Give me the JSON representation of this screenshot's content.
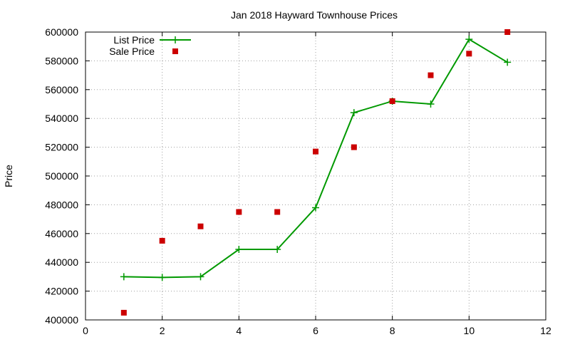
{
  "chart_data": {
    "type": "line",
    "title": "Jan 2018 Hayward Townhouse Prices",
    "xlabel": "",
    "ylabel": "Price",
    "xlim": [
      0,
      12
    ],
    "ylim": [
      400000,
      600000
    ],
    "x_ticks": [
      0,
      2,
      4,
      6,
      8,
      10,
      12
    ],
    "x_tick_labels": [
      "0",
      "2",
      "4",
      "6",
      "8",
      "10",
      "12"
    ],
    "y_ticks": [
      400000,
      420000,
      440000,
      460000,
      480000,
      500000,
      520000,
      540000,
      560000,
      580000,
      600000
    ],
    "y_tick_labels": [
      "400000",
      "420000",
      "440000",
      "460000",
      "480000",
      "500000",
      "520000",
      "540000",
      "560000",
      "580000",
      "600000"
    ],
    "grid": true,
    "legend_position": "top-left",
    "series": [
      {
        "name": "List Price",
        "style": "line-with-plus-markers",
        "color": "#009900",
        "x": [
          1,
          2,
          3,
          4,
          5,
          6,
          7,
          8,
          9,
          10,
          11
        ],
        "y": [
          430000,
          429500,
          430000,
          449000,
          449000,
          478000,
          544000,
          552000,
          550000,
          595000,
          579000
        ]
      },
      {
        "name": "Sale Price",
        "style": "square-markers",
        "color": "#cc0000",
        "x": [
          1,
          2,
          3,
          4,
          5,
          6,
          7,
          8,
          9,
          10,
          11
        ],
        "y": [
          405000,
          455000,
          465000,
          475000,
          475000,
          517000,
          520000,
          552000,
          570000,
          585000,
          600000
        ]
      }
    ]
  }
}
